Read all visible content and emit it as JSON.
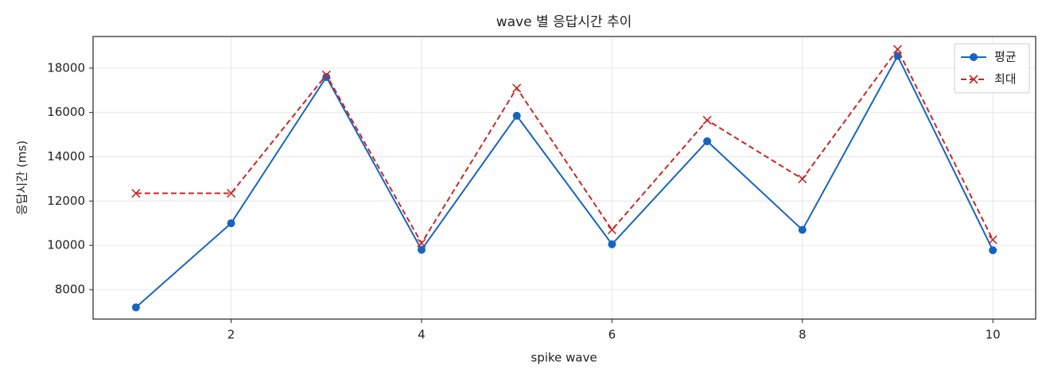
{
  "chart_data": {
    "type": "line",
    "title": "wave 별 응답시간 추이",
    "xlabel": "spike wave",
    "ylabel": "응답시간 (ms)",
    "x": [
      1,
      2,
      3,
      4,
      5,
      6,
      7,
      8,
      9,
      10
    ],
    "series": [
      {
        "name": "평균",
        "color": "#1565c0",
        "linestyle": "solid",
        "marker": "circle",
        "values": [
          7200,
          11000,
          17600,
          9800,
          15850,
          10050,
          14700,
          10700,
          18550,
          9780
        ]
      },
      {
        "name": "최대",
        "color": "#c62828",
        "linestyle": "dashed",
        "marker": "x",
        "values": [
          12350,
          12350,
          17700,
          10100,
          17100,
          10700,
          15650,
          13000,
          18850,
          10250
        ]
      }
    ],
    "xlim": [
      0.55,
      10.45
    ],
    "xticks": [
      2,
      4,
      6,
      8,
      10
    ],
    "ylim": [
      6670,
      19430
    ],
    "yticks": [
      8000,
      10000,
      12000,
      14000,
      16000,
      18000
    ],
    "grid": true,
    "legend": "upper right"
  }
}
